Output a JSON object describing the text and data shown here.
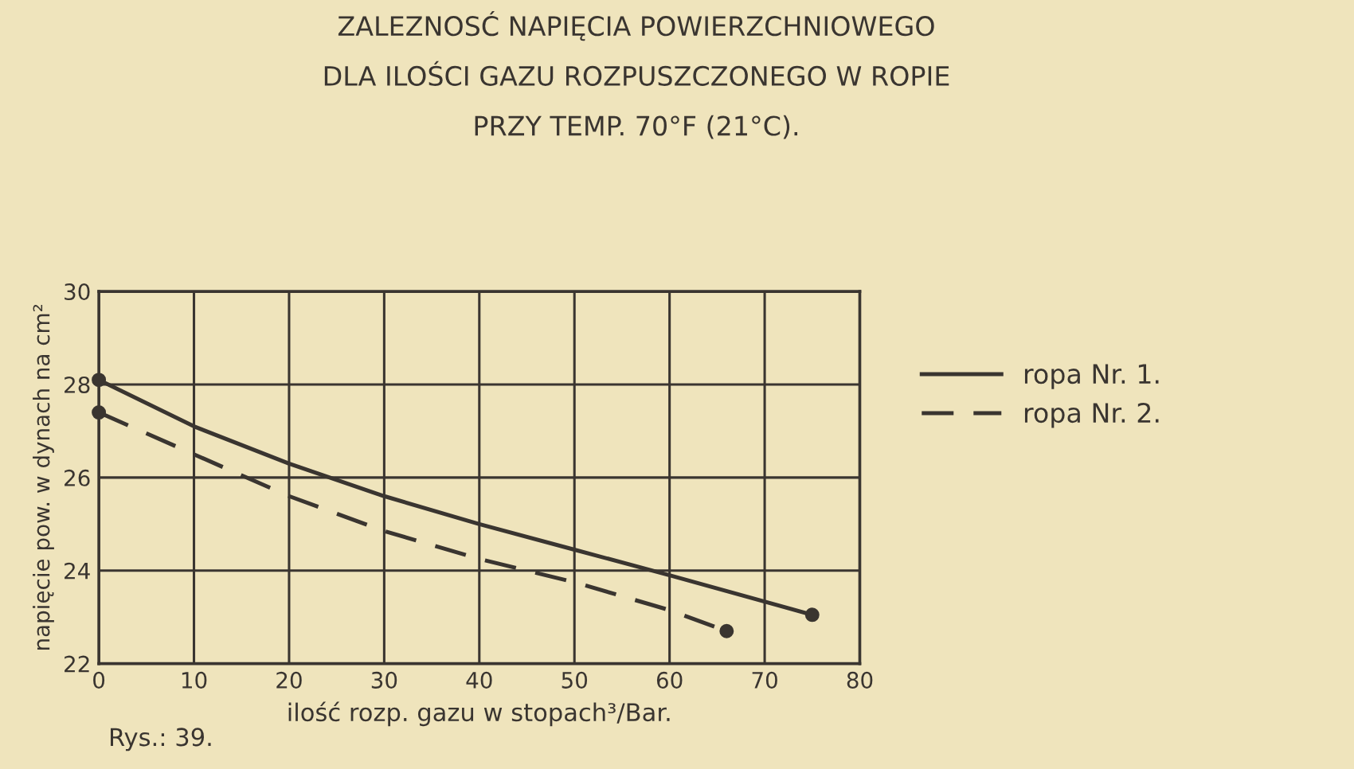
{
  "chart_data": {
    "type": "line",
    "title": "ZALEZNOSĆ NAPIĘCIA POWIERZCHNIOWEGO\nDLA ILOŚCI GAZU ROZPUSZCZONEGO W ROPIE\nPRZY TEMP. 70°F (21°C).",
    "xlabel": "ilość rozp. gazu w stopach³/Bar.",
    "ylabel": "napięcie pow. w dynach na cm²",
    "annotations": [
      "Rys.: 39."
    ],
    "series": [
      {
        "name": "ropa Nr. 1.",
        "color": "#3a3530",
        "line_style": "solid",
        "x": [
          0,
          10,
          20,
          30,
          40,
          50,
          60,
          75
        ],
        "values": [
          28.1,
          27.1,
          26.3,
          25.6,
          25.0,
          24.45,
          23.9,
          23.05
        ]
      },
      {
        "name": "ropa Nr. 2.",
        "color": "#3a3530",
        "line_style": "dashed",
        "x": [
          0,
          10,
          20,
          30,
          40,
          50,
          60,
          66
        ],
        "values": [
          27.4,
          26.5,
          25.6,
          24.85,
          24.25,
          23.75,
          23.15,
          22.7
        ]
      },
      {
        "type": "scatter",
        "marker": "circle",
        "color": "#3a3530",
        "x": [
          0,
          75
        ],
        "values": [
          28.1,
          23.05
        ]
      },
      {
        "type": "scatter",
        "marker": "circle",
        "color": "#3a3530",
        "x": [
          0,
          66
        ],
        "values": [
          27.4,
          22.7
        ]
      }
    ],
    "xlim": [
      0,
      80
    ],
    "ylim": [
      22,
      30
    ],
    "xticks": [
      0,
      10,
      20,
      30,
      40,
      50,
      60,
      70,
      80
    ],
    "yticks": [
      22,
      24,
      26,
      28,
      30
    ],
    "grid": true,
    "legend": "right"
  }
}
